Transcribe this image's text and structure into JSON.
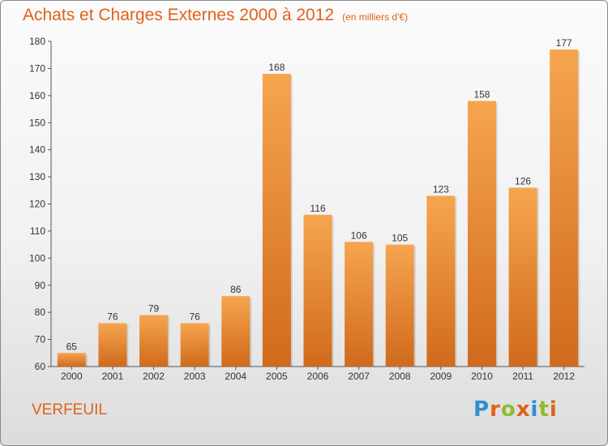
{
  "header": {
    "title": "Achats et Charges Externes 2000 à 2012",
    "unit": "(en milliers d'€)"
  },
  "footer": {
    "commune": "VERFEUIL",
    "logo_text": "Proxiti"
  },
  "colors": {
    "accent": "#e0621a",
    "bar_light": "#f6a54f",
    "bar_dark": "#d06a1c",
    "logo_letters": [
      "#2f8ecf",
      "#e0621a",
      "#8cbd2a",
      "#e0621a",
      "#2f8ecf",
      "#8cbd2a",
      "#e0621a"
    ]
  },
  "chart_data": {
    "type": "bar",
    "title": "Achats et Charges Externes 2000 à 2012",
    "subtitle": "(en milliers d'€)",
    "xlabel": "",
    "ylabel": "",
    "categories": [
      "2000",
      "2001",
      "2002",
      "2003",
      "2004",
      "2005",
      "2006",
      "2007",
      "2008",
      "2009",
      "2010",
      "2011",
      "2012"
    ],
    "values": [
      65,
      76,
      79,
      76,
      86,
      168,
      116,
      106,
      105,
      123,
      158,
      126,
      177
    ],
    "ylim": [
      60,
      180
    ],
    "yticks": [
      60,
      70,
      80,
      90,
      100,
      110,
      120,
      130,
      140,
      150,
      160,
      170,
      180
    ],
    "grid": false,
    "legend": "none"
  }
}
